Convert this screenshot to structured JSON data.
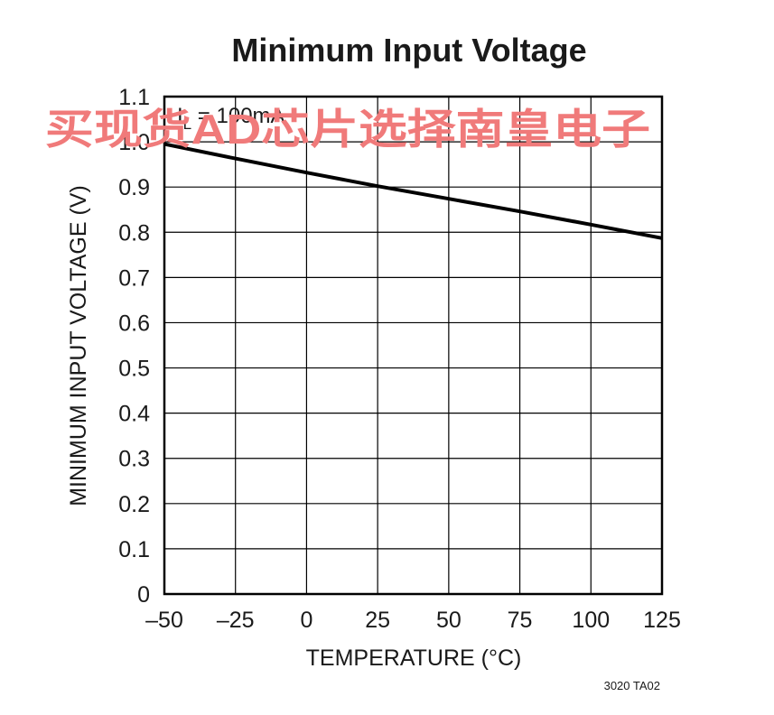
{
  "chart_data": {
    "type": "line",
    "title": "Minimum Input Voltage",
    "xlabel": "TEMPERATURE (°C)",
    "ylabel": "MINIMUM INPUT VOLTAGE (V)",
    "xlim": [
      -50,
      125
    ],
    "ylim": [
      0,
      1.1
    ],
    "x_ticks": [
      -50,
      -25,
      0,
      25,
      50,
      75,
      100,
      125
    ],
    "x_tick_labels": [
      "–50",
      "–25",
      "0",
      "25",
      "50",
      "75",
      "100",
      "125"
    ],
    "y_ticks": [
      0,
      0.1,
      0.2,
      0.3,
      0.4,
      0.5,
      0.6,
      0.7,
      0.8,
      0.9,
      1.0,
      1.1
    ],
    "y_tick_labels": [
      "0",
      "0.1",
      "0.2",
      "0.3",
      "0.4",
      "0.5",
      "0.6",
      "0.7",
      "0.8",
      "0.9",
      "1.0",
      "1.1"
    ],
    "grid": true,
    "annotation": {
      "prefix": "I",
      "subscript": "L",
      "suffix": " = 100mA"
    },
    "series": [
      {
        "x": [
          -50,
          -25,
          0,
          25,
          50,
          75,
          100,
          125
        ],
        "y": [
          0.995,
          0.963,
          0.932,
          0.902,
          0.874,
          0.846,
          0.817,
          0.787
        ],
        "color": "#000000"
      }
    ],
    "footnote": "3020 TA02"
  },
  "watermark": "买现货AD芯片选择南皇电子"
}
